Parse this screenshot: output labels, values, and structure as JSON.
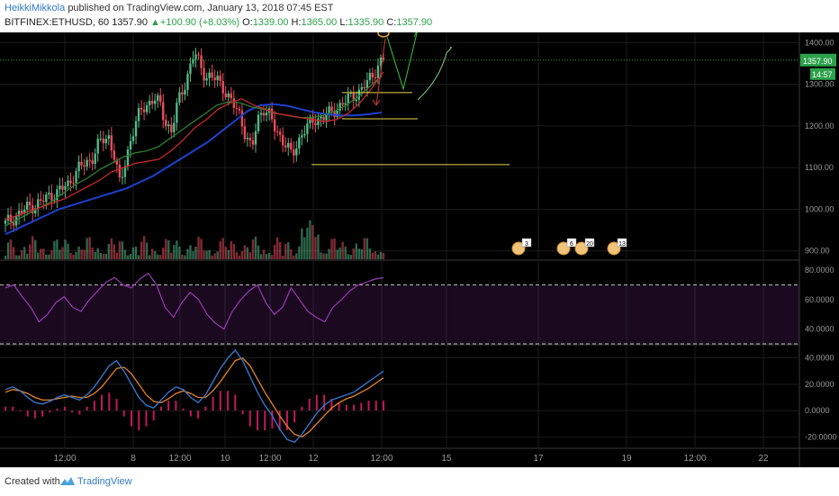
{
  "header": {
    "author": "HeikkiMikkola",
    "published": "published on TradingView.com, January 13, 2018 07:45 EST",
    "symbol": "BITFINEX:ETHUSD, 60",
    "last": "1357.90",
    "change": "+100.90 (+8.03%)",
    "open_label": "O:",
    "open": "1339.00",
    "high_label": "H:",
    "high": "1365.00",
    "low_label": "L:",
    "low": "1335.90",
    "close_label": "C:",
    "close": "1357.90"
  },
  "footer": {
    "created_with": "Created with",
    "brand": "TradingView"
  },
  "colors": {
    "bg": "#000000",
    "up": "#53b987",
    "down": "#eb4d5c",
    "ema_red": "#c62828",
    "ema_green": "#2e7d32",
    "ema_blue": "#1e40d0",
    "rsi": "#9b3bb5",
    "macd": "#3a7bd5",
    "signal": "#e8832a",
    "grid": "#1c1c1c"
  },
  "chart_data": [
    {
      "type": "candlestick",
      "pane": "price",
      "ylim": [
        880,
        1420
      ],
      "yticks": [
        "1400.00",
        "1300.00",
        "1200.00",
        "1100.00",
        "1000.00",
        "900.00"
      ],
      "ytick_values": [
        1400,
        1300,
        1200,
        1100,
        1000,
        900
      ],
      "last_price_label": "1357.90",
      "countdown_label": "14:57",
      "last_price": 1357.9,
      "xticks": [
        "12:00",
        "8",
        "12:00",
        "10",
        "12:00",
        "12",
        "12:00",
        "15",
        "17",
        "19",
        "12:00",
        "22"
      ],
      "close_path": [
        965,
        975,
        985,
        995,
        1005,
        1010,
        1015,
        1025,
        1035,
        1040,
        1050,
        1060,
        1085,
        1100,
        1110,
        1120,
        1150,
        1165,
        1175,
        1130,
        1055,
        1120,
        1175,
        1215,
        1245,
        1255,
        1265,
        1250,
        1210,
        1185,
        1250,
        1290,
        1330,
        1375,
        1345,
        1320,
        1315,
        1310,
        1295,
        1265,
        1245,
        1225,
        1175,
        1140,
        1215,
        1245,
        1225,
        1195,
        1175,
        1155,
        1125,
        1160,
        1190,
        1200,
        1215,
        1220,
        1225,
        1230,
        1245,
        1255,
        1265,
        1275,
        1285,
        1300,
        1320,
        1345,
        1360
      ],
      "ema_red": [
        975,
        985,
        995,
        1005,
        1015,
        1025,
        1040,
        1055,
        1070,
        1090,
        1100,
        1110,
        1115,
        1120,
        1140,
        1165,
        1195,
        1215,
        1240,
        1255,
        1265,
        1250,
        1240,
        1230,
        1225,
        1220,
        1215,
        1210,
        1215,
        1230,
        1255,
        1290,
        1330
      ],
      "ema_green": [
        960,
        975,
        990,
        1005,
        1020,
        1040,
        1060,
        1075,
        1095,
        1110,
        1125,
        1135,
        1140,
        1150,
        1170,
        1190,
        1210,
        1230,
        1250,
        1258,
        1255,
        1245,
        1240,
        1230,
        1225,
        1220,
        1220,
        1225,
        1235,
        1250,
        1270,
        1295,
        1320
      ],
      "ema_blue": [
        940,
        955,
        970,
        985,
        1000,
        1010,
        1020,
        1030,
        1040,
        1050,
        1065,
        1080,
        1100,
        1120,
        1140,
        1160,
        1185,
        1210,
        1235,
        1250,
        1252,
        1248,
        1240,
        1232,
        1228,
        1225,
        1225,
        1228,
        1232
      ],
      "annotations": {
        "resistance_red": 1375,
        "support_yellow": 1107,
        "box_top": 1280,
        "box_bottom": 1217
      }
    },
    {
      "type": "line",
      "pane": "rsi",
      "ylim": [
        30,
        85
      ],
      "yticks": [
        "80.0000",
        "60.0000",
        "40.0000"
      ],
      "ytick_values": [
        80,
        60,
        40
      ],
      "bands": [
        70,
        30
      ],
      "values": [
        68,
        70,
        62,
        55,
        45,
        50,
        58,
        62,
        55,
        52,
        60,
        66,
        72,
        75,
        70,
        68,
        74,
        78,
        70,
        55,
        48,
        58,
        65,
        60,
        50,
        44,
        40,
        52,
        60,
        66,
        70,
        58,
        50,
        55,
        68,
        60,
        52,
        48,
        45,
        55,
        60,
        66,
        70,
        72,
        74,
        75
      ]
    },
    {
      "type": "line",
      "pane": "macd",
      "ylim": [
        -28,
        48
      ],
      "yticks": [
        "40.0000",
        "20.0000",
        "0.0000",
        "-20.0000"
      ],
      "ytick_values": [
        40,
        20,
        0,
        -20
      ],
      "macd": [
        16,
        18,
        15,
        10,
        6,
        5,
        7,
        10,
        12,
        10,
        8,
        12,
        18,
        26,
        34,
        38,
        30,
        20,
        10,
        4,
        2,
        8,
        14,
        18,
        16,
        10,
        6,
        12,
        22,
        32,
        40,
        46,
        38,
        26,
        14,
        4,
        -4,
        -14,
        -22,
        -24,
        -18,
        -10,
        -2,
        4,
        8,
        10,
        12,
        14,
        18,
        22,
        26,
        30
      ],
      "signal": [
        14,
        16,
        15,
        13,
        10,
        8,
        8,
        9,
        10,
        11,
        10,
        10,
        13,
        18,
        25,
        32,
        33,
        28,
        20,
        12,
        7,
        6,
        9,
        13,
        15,
        13,
        10,
        10,
        15,
        22,
        30,
        38,
        40,
        34,
        24,
        14,
        5,
        -4,
        -12,
        -18,
        -20,
        -16,
        -10,
        -4,
        2,
        6,
        9,
        11,
        14,
        17,
        21,
        25
      ]
    }
  ]
}
